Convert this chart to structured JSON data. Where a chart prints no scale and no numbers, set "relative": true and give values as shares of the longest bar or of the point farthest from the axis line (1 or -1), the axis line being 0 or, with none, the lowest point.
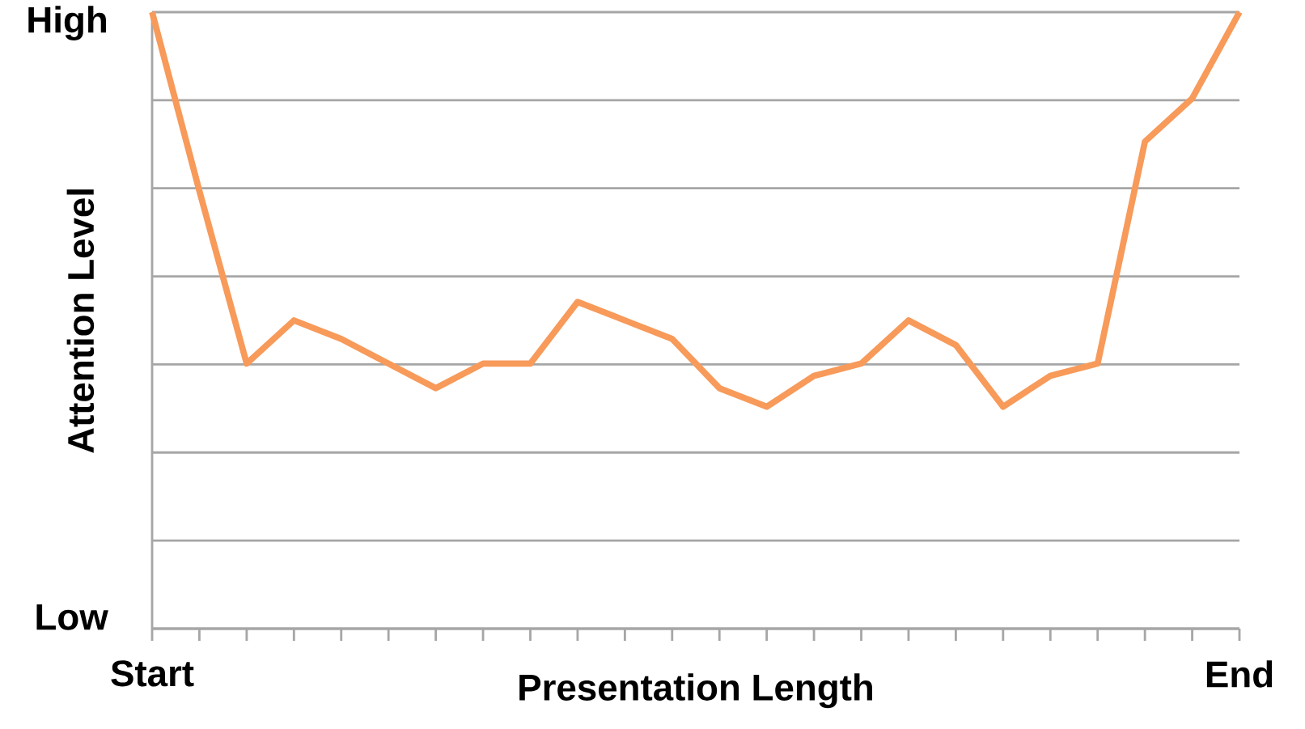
{
  "chart_data": {
    "type": "line",
    "xlabel": "Presentation Length",
    "ylabel": "Attention Level",
    "categories": [
      "Start",
      null,
      null,
      null,
      null,
      null,
      null,
      null,
      null,
      null,
      null,
      null,
      null,
      null,
      null,
      null,
      null,
      null,
      null,
      null,
      null,
      null,
      null,
      "End"
    ],
    "values": [
      1,
      0.71,
      0.43,
      0.5,
      0.47,
      0.43,
      0.39,
      0.43,
      0.43,
      0.53,
      0.5,
      0.47,
      0.39,
      0.36,
      0.41,
      0.43,
      0.5,
      0.46,
      0.36,
      0.41,
      0.43,
      0.79,
      0.86,
      1
    ],
    "color": "#f79a5a",
    "relative": true,
    "annotations": [
      "High",
      "Low"
    ],
    "grid": "y"
  }
}
